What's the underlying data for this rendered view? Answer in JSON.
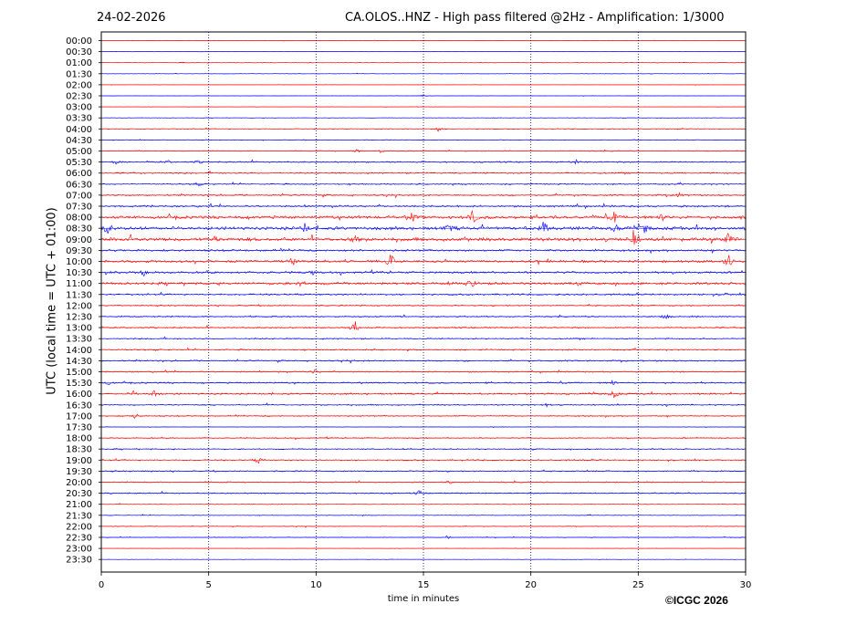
{
  "header": {
    "date": "24-02-2026",
    "title": "CA.OLOS..HNZ - High pass filtered @2Hz - Amplification: 1/3000"
  },
  "footer": {
    "copyright": "©ICGC 2026"
  },
  "colors": {
    "trace_even": "#ff0000",
    "trace_odd": "#0000ff",
    "frame": "#000000",
    "gridline": "#000080"
  },
  "chart_data": {
    "type": "line",
    "xlabel": "time in minutes",
    "ylabel": "UTC (local time = UTC + 01:00)",
    "xlim": [
      0,
      30
    ],
    "xticks": [
      0,
      5,
      10,
      15,
      20,
      25,
      30
    ],
    "vertical_grid_minutes": [
      5,
      10,
      15,
      20,
      25
    ],
    "grid": "dotted vertical",
    "series_colors": [
      "red",
      "blue"
    ],
    "rows": [
      "00:00",
      "00:30",
      "01:00",
      "01:30",
      "02:00",
      "02:30",
      "03:00",
      "03:30",
      "04:00",
      "04:30",
      "05:00",
      "05:30",
      "06:00",
      "06:30",
      "07:00",
      "07:30",
      "08:00",
      "08:30",
      "09:00",
      "09:30",
      "10:00",
      "10:30",
      "11:00",
      "11:30",
      "12:00",
      "12:30",
      "13:00",
      "13:30",
      "14:00",
      "14:30",
      "15:00",
      "15:30",
      "16:00",
      "16:30",
      "17:00",
      "17:30",
      "18:00",
      "18:30",
      "19:00",
      "19:30",
      "20:00",
      "20:30",
      "21:00",
      "21:30",
      "22:00",
      "22:30",
      "23:00",
      "23:30"
    ],
    "noise_level": [
      0.2,
      0.2,
      0.3,
      0.3,
      0.2,
      0.2,
      0.2,
      0.3,
      0.5,
      0.4,
      0.6,
      0.9,
      0.9,
      0.8,
      1.0,
      1.2,
      1.8,
      2.0,
      2.2,
      1.3,
      1.5,
      1.4,
      1.6,
      1.1,
      0.8,
      0.9,
      0.9,
      0.8,
      0.8,
      0.9,
      0.8,
      0.9,
      1.0,
      0.8,
      0.7,
      0.3,
      0.7,
      0.7,
      0.8,
      0.8,
      0.7,
      0.8,
      0.4,
      0.4,
      0.4,
      0.4,
      0.2,
      0.2
    ],
    "events": [
      {
        "row": "01:00",
        "minute": 3.8,
        "amplitude": 1.0
      },
      {
        "row": "02:30",
        "minute": 15.0,
        "amplitude": 1.5
      },
      {
        "row": "04:00",
        "minute": 15.7,
        "amplitude": 3.0
      },
      {
        "row": "05:00",
        "minute": 11.9,
        "amplitude": 2.0
      },
      {
        "row": "05:00",
        "minute": 13.0,
        "amplitude": 2.0
      },
      {
        "row": "05:30",
        "minute": 0.7,
        "amplitude": 2.5
      },
      {
        "row": "05:30",
        "minute": 3.1,
        "amplitude": 2.0
      },
      {
        "row": "05:30",
        "minute": 4.5,
        "amplitude": 2.0
      },
      {
        "row": "05:30",
        "minute": 22.1,
        "amplitude": 3.5
      },
      {
        "row": "06:30",
        "minute": 4.5,
        "amplitude": 2.5
      },
      {
        "row": "07:00",
        "minute": 26.9,
        "amplitude": 2.5
      },
      {
        "row": "08:00",
        "minute": 14.5,
        "amplitude": 6.0
      },
      {
        "row": "08:00",
        "minute": 17.3,
        "amplitude": 8.0
      },
      {
        "row": "08:00",
        "minute": 23.9,
        "amplitude": 6.0
      },
      {
        "row": "08:00",
        "minute": 26.2,
        "amplitude": 6.0
      },
      {
        "row": "08:00",
        "minute": 29.9,
        "amplitude": 3.0
      },
      {
        "row": "08:30",
        "minute": 0.3,
        "amplitude": 7.0
      },
      {
        "row": "08:30",
        "minute": 9.5,
        "amplitude": 6.0
      },
      {
        "row": "08:30",
        "minute": 16.2,
        "amplitude": 5.0
      },
      {
        "row": "08:30",
        "minute": 20.6,
        "amplitude": 9.0
      },
      {
        "row": "08:30",
        "minute": 24.0,
        "amplitude": 6.0
      },
      {
        "row": "08:30",
        "minute": 25.3,
        "amplitude": 5.0
      },
      {
        "row": "09:00",
        "minute": 1.3,
        "amplitude": 3.0
      },
      {
        "row": "09:00",
        "minute": 5.3,
        "amplitude": 3.0
      },
      {
        "row": "09:00",
        "minute": 11.8,
        "amplitude": 7.0
      },
      {
        "row": "09:00",
        "minute": 24.8,
        "amplitude": 12.0
      },
      {
        "row": "09:00",
        "minute": 29.2,
        "amplitude": 6.0
      },
      {
        "row": "10:00",
        "minute": 8.9,
        "amplitude": 5.0
      },
      {
        "row": "10:00",
        "minute": 13.5,
        "amplitude": 10.0
      },
      {
        "row": "10:00",
        "minute": 29.2,
        "amplitude": 8.0
      },
      {
        "row": "10:30",
        "minute": 2.0,
        "amplitude": 4.0
      },
      {
        "row": "10:30",
        "minute": 9.8,
        "amplitude": 3.0
      },
      {
        "row": "11:00",
        "minute": 9.3,
        "amplitude": 4.0
      },
      {
        "row": "11:00",
        "minute": 17.2,
        "amplitude": 7.0
      },
      {
        "row": "11:30",
        "minute": 29.0,
        "amplitude": 2.5
      },
      {
        "row": "12:30",
        "minute": 26.3,
        "amplitude": 3.0
      },
      {
        "row": "13:00",
        "minute": 11.8,
        "amplitude": 9.0
      },
      {
        "row": "15:00",
        "minute": 9.9,
        "amplitude": 3.0
      },
      {
        "row": "15:30",
        "minute": 0.3,
        "amplitude": 2.0
      },
      {
        "row": "15:30",
        "minute": 23.8,
        "amplitude": 3.0
      },
      {
        "row": "16:00",
        "minute": 1.5,
        "amplitude": 3.0
      },
      {
        "row": "16:00",
        "minute": 2.5,
        "amplitude": 5.0
      },
      {
        "row": "16:00",
        "minute": 23.9,
        "amplitude": 6.0
      },
      {
        "row": "16:30",
        "minute": 20.7,
        "amplitude": 2.5
      },
      {
        "row": "17:00",
        "minute": 1.6,
        "amplitude": 4.0
      },
      {
        "row": "19:00",
        "minute": 7.3,
        "amplitude": 4.0
      },
      {
        "row": "20:00",
        "minute": 16.2,
        "amplitude": 3.0
      },
      {
        "row": "20:30",
        "minute": 14.8,
        "amplitude": 3.0
      },
      {
        "row": "22:30",
        "minute": 16.1,
        "amplitude": 2.5
      }
    ]
  }
}
